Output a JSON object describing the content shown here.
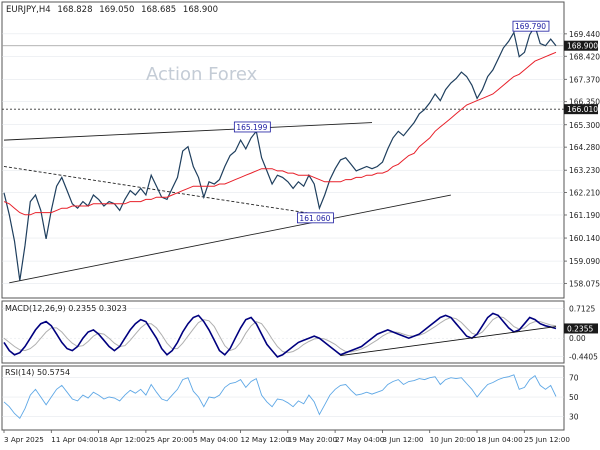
{
  "header": {
    "symbol": "EURJPY,H4",
    "open": "168.828",
    "high": "169.050",
    "low": "168.685",
    "close": "168.900"
  },
  "watermark": "Action Forex",
  "colors": {
    "price": "#1f3f5e",
    "ma": "#e8202a",
    "macd": "#00007f",
    "signal": "#b0b0b0",
    "rsi": "#5fa8e6",
    "grid": "#dfe3e8",
    "label_bg": "#1a1a1a"
  },
  "chart_data": [
    {
      "type": "line",
      "panel": "price",
      "ylim": [
        157.5,
        170.8
      ],
      "y_ticks": [
        158.075,
        159.09,
        160.14,
        161.19,
        162.21,
        163.23,
        164.28,
        165.3,
        166.35,
        167.37,
        168.42,
        169.44
      ],
      "y_tick_labels": [
        "158.075",
        "159.090",
        "160.140",
        "161.190",
        "162.210",
        "163.230",
        "164.280",
        "165.300",
        "166.350",
        "167.370",
        "168.420",
        "169.440"
      ],
      "x_tick_labels": [
        "3 Apr 2025",
        "11 Apr 04:00",
        "18 Apr 12:00",
        "25 Apr 20:00",
        "5 May 04:00",
        "12 May 12:00",
        "19 May 20:00",
        "27 May 04:00",
        "3 Jun 12:00",
        "10 Jun 20:00",
        "18 Jun 04:00",
        "25 Jun 12:00"
      ],
      "current_price": {
        "value": 168.9,
        "label": "168.900"
      },
      "reference_level": {
        "value": 166.01,
        "label": "166.010"
      },
      "annotations": [
        {
          "label": "169.790",
          "value": 169.79,
          "x_bar": 101
        },
        {
          "label": "165.199",
          "value": 165.199,
          "x_bar": 48
        },
        {
          "label": "161.060",
          "value": 161.06,
          "x_bar": 60
        }
      ],
      "trendlines": [
        {
          "style": "solid",
          "from": [
            0,
            164.6
          ],
          "to": [
            70,
            165.4
          ]
        },
        {
          "style": "solid",
          "from": [
            1,
            158.1
          ],
          "to": [
            85,
            162.1
          ]
        },
        {
          "style": "dashed",
          "from": [
            0,
            163.4
          ],
          "to": [
            60,
            161.2
          ]
        }
      ],
      "series": [
        {
          "role": "price",
          "values": [
            162.2,
            161.2,
            160.0,
            158.2,
            159.8,
            161.8,
            162.1,
            161.4,
            160.1,
            161.4,
            162.5,
            162.9,
            162.3,
            161.7,
            161.5,
            161.8,
            161.6,
            162.1,
            161.9,
            161.6,
            161.8,
            161.7,
            161.4,
            161.9,
            162.3,
            162.1,
            162.4,
            162.1,
            163.0,
            162.5,
            162.0,
            161.9,
            162.4,
            162.9,
            164.1,
            164.3,
            163.4,
            162.9,
            162.0,
            162.7,
            162.6,
            162.8,
            163.4,
            163.9,
            164.1,
            164.6,
            164.2,
            164.7,
            165.0,
            163.8,
            163.2,
            162.6,
            163.0,
            162.9,
            162.7,
            162.4,
            162.7,
            162.5,
            163.0,
            162.6,
            161.5,
            162.1,
            162.8,
            163.3,
            163.7,
            163.8,
            163.5,
            163.2,
            163.3,
            163.4,
            163.3,
            163.4,
            163.6,
            164.2,
            164.7,
            165.0,
            164.8,
            165.1,
            165.4,
            165.8,
            166.0,
            166.3,
            166.7,
            166.4,
            166.9,
            167.2,
            167.4,
            167.7,
            167.5,
            167.1,
            166.5,
            166.9,
            167.5,
            167.8,
            168.3,
            168.8,
            169.1,
            169.5,
            168.4,
            168.6,
            169.4,
            169.79,
            169.0,
            168.9,
            169.2,
            168.9
          ]
        },
        {
          "role": "moving average",
          "values": [
            161.8,
            161.7,
            161.5,
            161.3,
            161.2,
            161.2,
            161.3,
            161.3,
            161.3,
            161.3,
            161.4,
            161.5,
            161.5,
            161.6,
            161.6,
            161.6,
            161.6,
            161.7,
            161.7,
            161.7,
            161.7,
            161.7,
            161.7,
            161.7,
            161.8,
            161.8,
            161.8,
            161.9,
            161.9,
            162.0,
            162.0,
            162.0,
            162.1,
            162.2,
            162.3,
            162.4,
            162.5,
            162.5,
            162.5,
            162.5,
            162.5,
            162.6,
            162.6,
            162.7,
            162.8,
            162.9,
            163.0,
            163.1,
            163.2,
            163.3,
            163.3,
            163.3,
            163.2,
            163.2,
            163.1,
            163.1,
            163.0,
            163.0,
            163.0,
            162.9,
            162.8,
            162.7,
            162.7,
            162.7,
            162.7,
            162.8,
            162.8,
            162.9,
            162.9,
            163.0,
            163.0,
            163.1,
            163.1,
            163.2,
            163.4,
            163.5,
            163.7,
            163.9,
            164.0,
            164.3,
            164.5,
            164.7,
            165.0,
            165.2,
            165.4,
            165.6,
            165.8,
            166.0,
            166.2,
            166.3,
            166.4,
            166.5,
            166.6,
            166.7,
            166.9,
            167.1,
            167.3,
            167.5,
            167.6,
            167.8,
            168.0,
            168.2,
            168.3,
            168.4,
            168.5,
            168.6
          ]
        }
      ]
    },
    {
      "type": "line",
      "panel": "macd",
      "title": "MACD(12,26,9) 0.2355 0.3023",
      "ylim": [
        -0.55,
        0.85
      ],
      "y_ticks": [
        0.7125,
        0.0,
        -0.4405
      ],
      "y_tick_labels": [
        "0.7125",
        "0.00",
        "-0.4405"
      ],
      "current_value": {
        "value": 0.2355,
        "label": "0.2355"
      },
      "trendline": {
        "style": "solid",
        "from": [
          64,
          -0.42
        ],
        "to": [
          105,
          0.28
        ]
      },
      "series": [
        {
          "role": "macd",
          "values": [
            -0.1,
            -0.3,
            -0.4,
            -0.35,
            -0.2,
            0.0,
            0.2,
            0.35,
            0.4,
            0.3,
            0.1,
            -0.1,
            -0.25,
            -0.3,
            -0.2,
            0.0,
            0.15,
            0.2,
            0.1,
            -0.05,
            -0.2,
            -0.3,
            -0.2,
            0.0,
            0.2,
            0.35,
            0.45,
            0.4,
            0.2,
            0.0,
            -0.25,
            -0.4,
            -0.3,
            -0.1,
            0.15,
            0.35,
            0.5,
            0.55,
            0.4,
            0.2,
            -0.05,
            -0.3,
            -0.4,
            -0.25,
            0.0,
            0.25,
            0.45,
            0.5,
            0.35,
            0.1,
            -0.15,
            -0.3,
            -0.45,
            -0.4,
            -0.3,
            -0.2,
            -0.1,
            -0.05,
            0.0,
            0.05,
            0.0,
            -0.1,
            -0.2,
            -0.3,
            -0.4,
            -0.35,
            -0.3,
            -0.25,
            -0.2,
            -0.1,
            0.0,
            0.1,
            0.15,
            0.2,
            0.15,
            0.1,
            0.05,
            0.0,
            0.05,
            0.1,
            0.2,
            0.3,
            0.4,
            0.5,
            0.55,
            0.5,
            0.35,
            0.2,
            0.05,
            0.0,
            0.1,
            0.3,
            0.5,
            0.6,
            0.55,
            0.4,
            0.25,
            0.15,
            0.2,
            0.35,
            0.5,
            0.45,
            0.35,
            0.3,
            0.27,
            0.2355
          ]
        },
        {
          "role": "signal",
          "values": [
            0.0,
            -0.1,
            -0.2,
            -0.28,
            -0.3,
            -0.25,
            -0.15,
            0.0,
            0.15,
            0.25,
            0.25,
            0.15,
            0.0,
            -0.12,
            -0.2,
            -0.18,
            -0.08,
            0.05,
            0.12,
            0.1,
            0.0,
            -0.12,
            -0.2,
            -0.18,
            -0.05,
            0.1,
            0.25,
            0.35,
            0.35,
            0.25,
            0.08,
            -0.12,
            -0.25,
            -0.25,
            -0.12,
            0.05,
            0.22,
            0.38,
            0.45,
            0.42,
            0.28,
            0.05,
            -0.18,
            -0.3,
            -0.25,
            -0.1,
            0.12,
            0.3,
            0.4,
            0.35,
            0.18,
            -0.02,
            -0.2,
            -0.32,
            -0.35,
            -0.32,
            -0.25,
            -0.15,
            -0.08,
            -0.02,
            0.0,
            -0.02,
            -0.08,
            -0.15,
            -0.25,
            -0.32,
            -0.33,
            -0.3,
            -0.26,
            -0.2,
            -0.12,
            -0.04,
            0.05,
            0.12,
            0.15,
            0.14,
            0.1,
            0.06,
            0.05,
            0.07,
            0.12,
            0.2,
            0.28,
            0.37,
            0.45,
            0.5,
            0.47,
            0.38,
            0.25,
            0.12,
            0.08,
            0.15,
            0.3,
            0.45,
            0.52,
            0.5,
            0.4,
            0.28,
            0.22,
            0.25,
            0.35,
            0.4,
            0.4,
            0.36,
            0.32,
            0.3023
          ]
        }
      ]
    },
    {
      "type": "line",
      "panel": "rsi",
      "title": "RSI(14) 50.5754",
      "ylim": [
        18,
        80
      ],
      "y_ticks": [
        70,
        50,
        30
      ],
      "y_tick_labels": [
        "70",
        "50",
        "30"
      ],
      "series": [
        {
          "role": "rsi",
          "values": [
            45,
            40,
            33,
            28,
            38,
            52,
            58,
            50,
            42,
            50,
            58,
            62,
            55,
            48,
            46,
            52,
            49,
            55,
            52,
            48,
            50,
            49,
            46,
            52,
            57,
            54,
            58,
            52,
            63,
            55,
            48,
            46,
            52,
            58,
            68,
            70,
            56,
            50,
            40,
            50,
            49,
            52,
            60,
            64,
            65,
            68,
            60,
            66,
            69,
            52,
            45,
            40,
            48,
            47,
            44,
            40,
            46,
            43,
            52,
            45,
            32,
            42,
            52,
            58,
            62,
            63,
            57,
            52,
            53,
            55,
            53,
            55,
            57,
            63,
            66,
            68,
            63,
            66,
            67,
            69,
            68,
            70,
            71,
            63,
            68,
            70,
            69,
            70,
            64,
            58,
            50,
            57,
            63,
            65,
            68,
            70,
            71,
            73,
            58,
            60,
            68,
            72,
            62,
            58,
            62,
            50.5754
          ]
        }
      ]
    }
  ]
}
